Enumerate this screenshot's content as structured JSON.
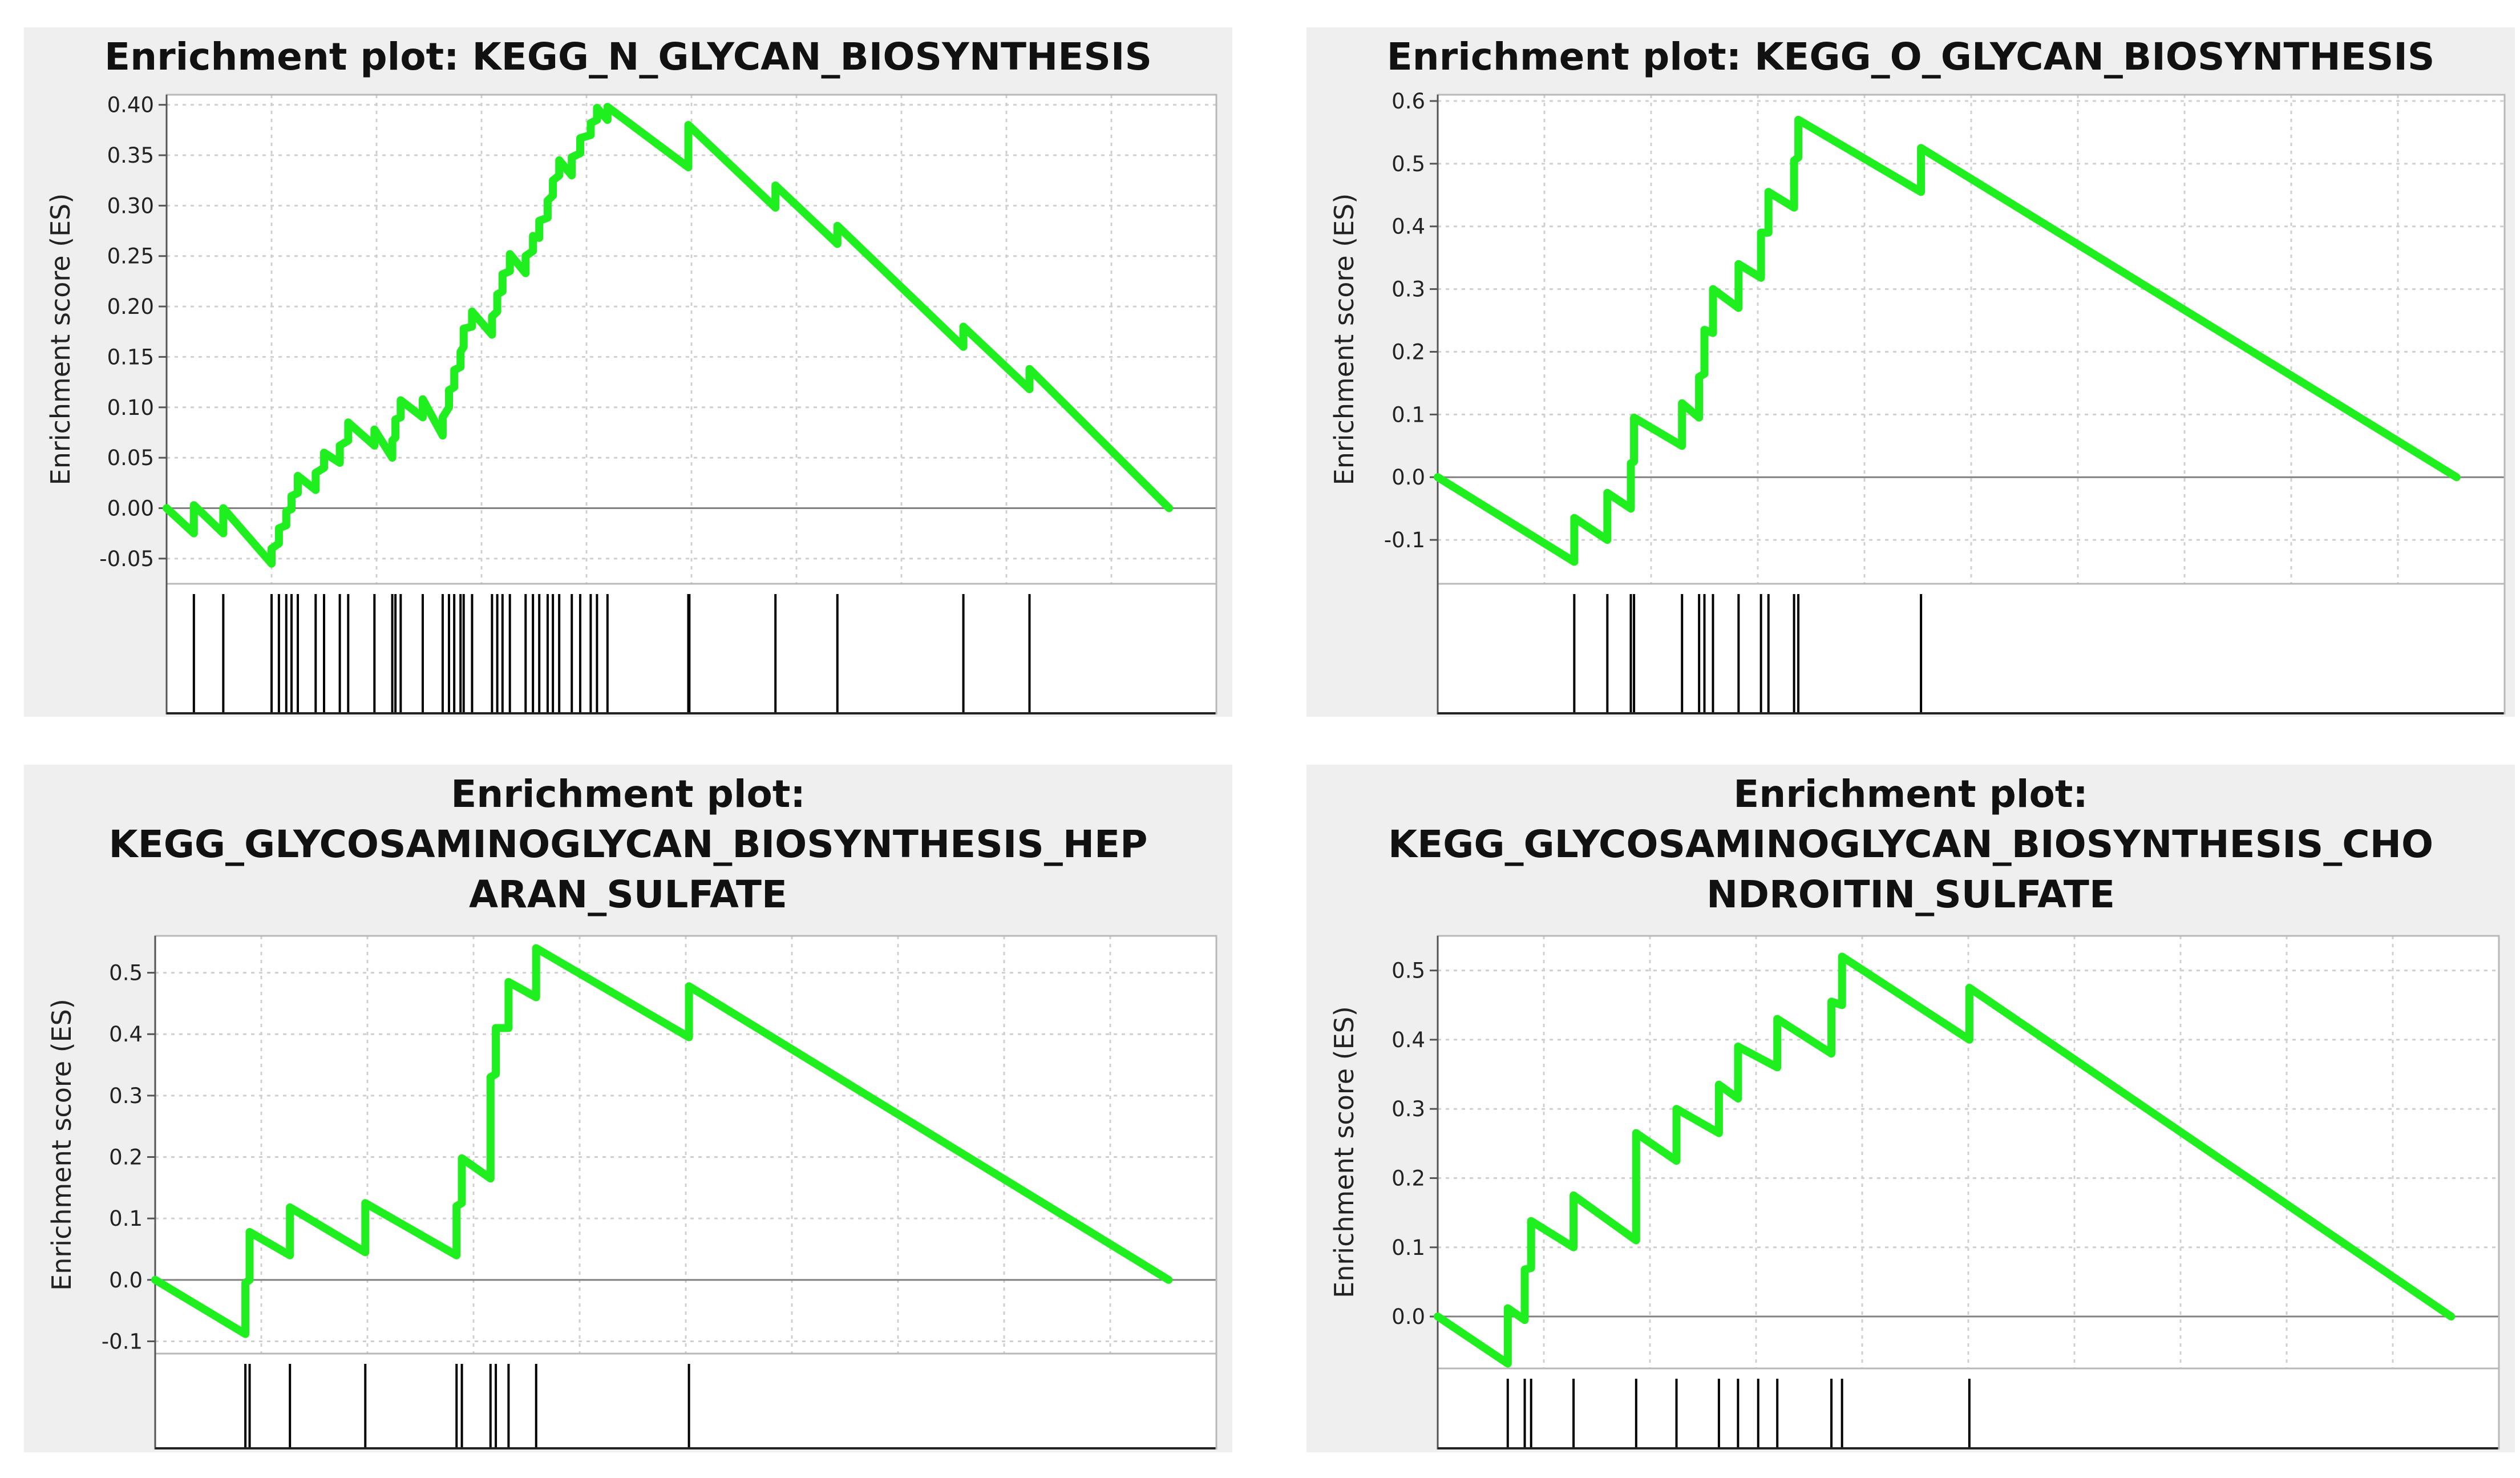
{
  "colors": {
    "es_line": "#1fef1f",
    "hit_line": "#000000",
    "grid": "#d0d0d0",
    "zero_line": "#808080",
    "panel_bg": "#efefef"
  },
  "chart_data": [
    {
      "type": "line",
      "title": [
        "Enrichment plot: KEGG_N_GLYCAN_BIOSYNTHESIS"
      ],
      "ylabel": "Enrichment score (ES)",
      "ylim": [
        -0.075,
        0.41
      ],
      "yticks": [
        -0.05,
        0.0,
        0.05,
        0.1,
        0.15,
        0.2,
        0.25,
        0.3,
        0.35,
        0.4
      ],
      "ytick_labels": [
        "-0.05",
        "0.00",
        "0.05",
        "0.10",
        "0.15",
        "0.20",
        "0.25",
        "0.30",
        "0.35",
        "0.40"
      ],
      "grid": true,
      "xlim": [
        0,
        100
      ],
      "series": [
        {
          "values": [
            [
              0,
              0
            ],
            [
              2.6,
              -0.025
            ],
            [
              2.6,
              0.003
            ],
            [
              5.4,
              -0.025
            ],
            [
              5.4,
              0.0
            ],
            [
              10,
              -0.055
            ],
            [
              10,
              -0.04
            ],
            [
              10.7,
              -0.035
            ],
            [
              10.7,
              -0.02
            ],
            [
              11.4,
              -0.017
            ],
            [
              11.4,
              -0.003
            ],
            [
              11.9,
              -0.001
            ],
            [
              11.9,
              0.012
            ],
            [
              12.5,
              0.015
            ],
            [
              12.5,
              0.032
            ],
            [
              14.2,
              0.018
            ],
            [
              14.2,
              0.035
            ],
            [
              15,
              0.04
            ],
            [
              15,
              0.055
            ],
            [
              16.5,
              0.045
            ],
            [
              16.5,
              0.062
            ],
            [
              17.3,
              0.067
            ],
            [
              17.3,
              0.085
            ],
            [
              19.8,
              0.062
            ],
            [
              19.8,
              0.078
            ],
            [
              21.5,
              0.05
            ],
            [
              21.5,
              0.067
            ],
            [
              21.8,
              0.07
            ],
            [
              21.8,
              0.088
            ],
            [
              22.3,
              0.09
            ],
            [
              22.3,
              0.107
            ],
            [
              24.4,
              0.09
            ],
            [
              24.4,
              0.108
            ],
            [
              26.3,
              0.072
            ],
            [
              26.3,
              0.09
            ],
            [
              26.9,
              0.1
            ],
            [
              26.9,
              0.117
            ],
            [
              27.4,
              0.12
            ],
            [
              27.4,
              0.137
            ],
            [
              28,
              0.14
            ],
            [
              28,
              0.155
            ],
            [
              28.3,
              0.16
            ],
            [
              28.3,
              0.178
            ],
            [
              29.1,
              0.18
            ],
            [
              29.1,
              0.195
            ],
            [
              31,
              0.172
            ],
            [
              31,
              0.19
            ],
            [
              31.5,
              0.195
            ],
            [
              31.5,
              0.212
            ],
            [
              32,
              0.215
            ],
            [
              32,
              0.232
            ],
            [
              32.7,
              0.235
            ],
            [
              32.7,
              0.252
            ],
            [
              34.2,
              0.233
            ],
            [
              34.2,
              0.25
            ],
            [
              34.9,
              0.255
            ],
            [
              34.9,
              0.27
            ],
            [
              35.5,
              0.268
            ],
            [
              35.5,
              0.285
            ],
            [
              36.3,
              0.288
            ],
            [
              36.3,
              0.305
            ],
            [
              36.8,
              0.31
            ],
            [
              36.8,
              0.325
            ],
            [
              37.4,
              0.33
            ],
            [
              37.4,
              0.345
            ],
            [
              38.6,
              0.33
            ],
            [
              38.6,
              0.348
            ],
            [
              39.4,
              0.352
            ],
            [
              39.4,
              0.367
            ],
            [
              40.4,
              0.37
            ],
            [
              40.4,
              0.382
            ],
            [
              41,
              0.385
            ],
            [
              41,
              0.397
            ],
            [
              42,
              0.385
            ],
            [
              42,
              0.398
            ],
            [
              49.7,
              0.338
            ],
            [
              49.7,
              0.38
            ],
            [
              58,
              0.298
            ],
            [
              58,
              0.32
            ],
            [
              63.9,
              0.262
            ],
            [
              63.9,
              0.28
            ],
            [
              75.9,
              0.16
            ],
            [
              75.9,
              0.18
            ],
            [
              82.2,
              0.118
            ],
            [
              82.2,
              0.138
            ],
            [
              95.5,
              0.0
            ]
          ]
        }
      ],
      "hits": [
        2.6,
        5.4,
        10,
        10.7,
        11.4,
        11.9,
        12.5,
        14.2,
        15,
        16.5,
        17.3,
        19.8,
        21.5,
        21.8,
        22.3,
        24.4,
        26.3,
        26.9,
        27.4,
        28,
        28.3,
        29.1,
        31,
        31.5,
        32,
        32.7,
        34.2,
        34.9,
        35.5,
        36.3,
        36.8,
        37.4,
        38.6,
        39.4,
        40.4,
        41,
        42,
        49.7,
        49.8,
        58,
        63.9,
        75.9,
        82.2
      ]
    },
    {
      "type": "line",
      "title": [
        "Enrichment plot: KEGG_O_GLYCAN_BIOSYNTHESIS"
      ],
      "ylabel": "Enrichment score (ES)",
      "ylim": [
        -0.17,
        0.61
      ],
      "yticks": [
        -0.1,
        0.0,
        0.1,
        0.2,
        0.3,
        0.4,
        0.5,
        0.6
      ],
      "ytick_labels": [
        "-0.1",
        "0.0",
        "0.1",
        "0.2",
        "0.3",
        "0.4",
        "0.5",
        "0.6"
      ],
      "grid": true,
      "xlim": [
        0,
        100
      ],
      "series": [
        {
          "values": [
            [
              0,
              0
            ],
            [
              12.8,
              -0.135
            ],
            [
              12.8,
              -0.065
            ],
            [
              15.9,
              -0.1
            ],
            [
              15.9,
              -0.025
            ],
            [
              18.1,
              -0.05
            ],
            [
              18.1,
              0.022
            ],
            [
              18.4,
              0.025
            ],
            [
              18.4,
              0.095
            ],
            [
              22.9,
              0.05
            ],
            [
              22.9,
              0.118
            ],
            [
              24.5,
              0.095
            ],
            [
              24.5,
              0.16
            ],
            [
              25,
              0.165
            ],
            [
              25,
              0.235
            ],
            [
              25.8,
              0.23
            ],
            [
              25.8,
              0.3
            ],
            [
              28.2,
              0.27
            ],
            [
              28.2,
              0.34
            ],
            [
              30.3,
              0.318
            ],
            [
              30.3,
              0.39
            ],
            [
              31,
              0.39
            ],
            [
              31,
              0.455
            ],
            [
              33.4,
              0.43
            ],
            [
              33.4,
              0.505
            ],
            [
              33.8,
              0.51
            ],
            [
              33.8,
              0.57
            ],
            [
              45.3,
              0.455
            ],
            [
              45.3,
              0.525
            ],
            [
              95.5,
              0.0
            ]
          ]
        }
      ],
      "hits": [
        12.8,
        15.9,
        18.1,
        18.4,
        22.9,
        24.5,
        25,
        25.8,
        28.2,
        30.3,
        31,
        33.4,
        33.8,
        45.3
      ]
    },
    {
      "type": "line",
      "title": [
        "Enrichment plot:",
        "KEGG_GLYCOSAMINOGLYCAN_BIOSYNTHESIS_HEP",
        "ARAN_SULFATE"
      ],
      "ylabel": "Enrichment score (ES)",
      "ylim": [
        -0.12,
        0.56
      ],
      "yticks": [
        -0.1,
        0.0,
        0.1,
        0.2,
        0.3,
        0.4,
        0.5
      ],
      "ytick_labels": [
        "-0.1",
        "0.0",
        "0.1",
        "0.2",
        "0.3",
        "0.4",
        "0.5"
      ],
      "grid": true,
      "xlim": [
        0,
        100
      ],
      "series": [
        {
          "values": [
            [
              0,
              0
            ],
            [
              8.5,
              -0.088
            ],
            [
              8.5,
              -0.005
            ],
            [
              8.9,
              0.0
            ],
            [
              8.9,
              0.078
            ],
            [
              12.7,
              0.04
            ],
            [
              12.7,
              0.118
            ],
            [
              19.8,
              0.045
            ],
            [
              19.8,
              0.125
            ],
            [
              28.4,
              0.04
            ],
            [
              28.4,
              0.12
            ],
            [
              28.9,
              0.125
            ],
            [
              28.9,
              0.198
            ],
            [
              31.6,
              0.165
            ],
            [
              31.6,
              0.33
            ],
            [
              32.1,
              0.335
            ],
            [
              32.1,
              0.41
            ],
            [
              33.3,
              0.41
            ],
            [
              33.3,
              0.485
            ],
            [
              35.9,
              0.46
            ],
            [
              35.9,
              0.54
            ],
            [
              50.3,
              0.395
            ],
            [
              50.3,
              0.478
            ],
            [
              95.5,
              0.0
            ]
          ]
        }
      ],
      "hits": [
        8.5,
        8.9,
        12.7,
        19.8,
        28.4,
        28.9,
        31.6,
        32.1,
        33.3,
        35.9,
        50.3
      ]
    },
    {
      "type": "line",
      "title": [
        "Enrichment plot:",
        "KEGG_GLYCOSAMINOGLYCAN_BIOSYNTHESIS_CHO",
        "NDROITIN_SULFATE"
      ],
      "ylabel": "Enrichment score (ES)",
      "ylim": [
        -0.075,
        0.55
      ],
      "yticks": [
        0.0,
        0.1,
        0.2,
        0.3,
        0.4,
        0.5
      ],
      "ytick_labels": [
        "0.0",
        "0.1",
        "0.2",
        "0.3",
        "0.4",
        "0.5"
      ],
      "grid": true,
      "xlim": [
        0,
        100
      ],
      "series": [
        {
          "values": [
            [
              0,
              0
            ],
            [
              6.6,
              -0.068
            ],
            [
              6.6,
              0.012
            ],
            [
              8.2,
              -0.005
            ],
            [
              8.2,
              0.068
            ],
            [
              8.8,
              0.07
            ],
            [
              8.8,
              0.138
            ],
            [
              12.8,
              0.1
            ],
            [
              12.8,
              0.175
            ],
            [
              18.7,
              0.11
            ],
            [
              18.7,
              0.265
            ],
            [
              22.5,
              0.225
            ],
            [
              22.5,
              0.3
            ],
            [
              26.5,
              0.265
            ],
            [
              26.5,
              0.335
            ],
            [
              28.3,
              0.315
            ],
            [
              28.3,
              0.39
            ],
            [
              32,
              0.36
            ],
            [
              32,
              0.43
            ],
            [
              37.1,
              0.38
            ],
            [
              37.1,
              0.455
            ],
            [
              38.1,
              0.45
            ],
            [
              38.1,
              0.52
            ],
            [
              50.1,
              0.4
            ],
            [
              50.1,
              0.475
            ],
            [
              95.5,
              0.0
            ]
          ]
        }
      ],
      "hits": [
        6.6,
        8.2,
        8.8,
        12.8,
        18.7,
        22.5,
        26.5,
        28.3,
        30.2,
        32,
        37.1,
        38.1,
        50.1
      ]
    }
  ]
}
